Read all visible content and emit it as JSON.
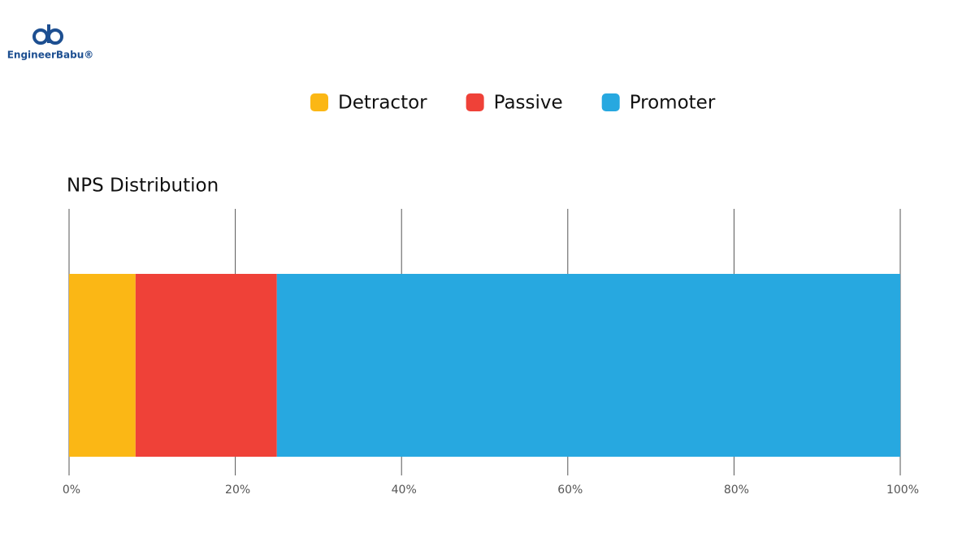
{
  "logo_text": "EngineerBabu®",
  "chart_data": {
    "type": "stacked-barh",
    "title": "NPS Distribution",
    "categories": [
      null
    ],
    "series": [
      {
        "name": "Detractor",
        "color": "#fbb715",
        "values": [
          8
        ]
      },
      {
        "name": "Passive",
        "color": "#ef4138",
        "values": [
          17
        ]
      },
      {
        "name": "Promoter",
        "color": "#27a8e0",
        "values": [
          75
        ]
      }
    ],
    "xlim": [
      0,
      100
    ],
    "xticks": [
      {
        "value": 0,
        "label": "0%"
      },
      {
        "value": 20,
        "label": "20%"
      },
      {
        "value": 40,
        "label": "40%"
      },
      {
        "value": 60,
        "label": "60%"
      },
      {
        "value": 80,
        "label": "80%"
      },
      {
        "value": 100,
        "label": "100%"
      }
    ],
    "grid": true
  }
}
